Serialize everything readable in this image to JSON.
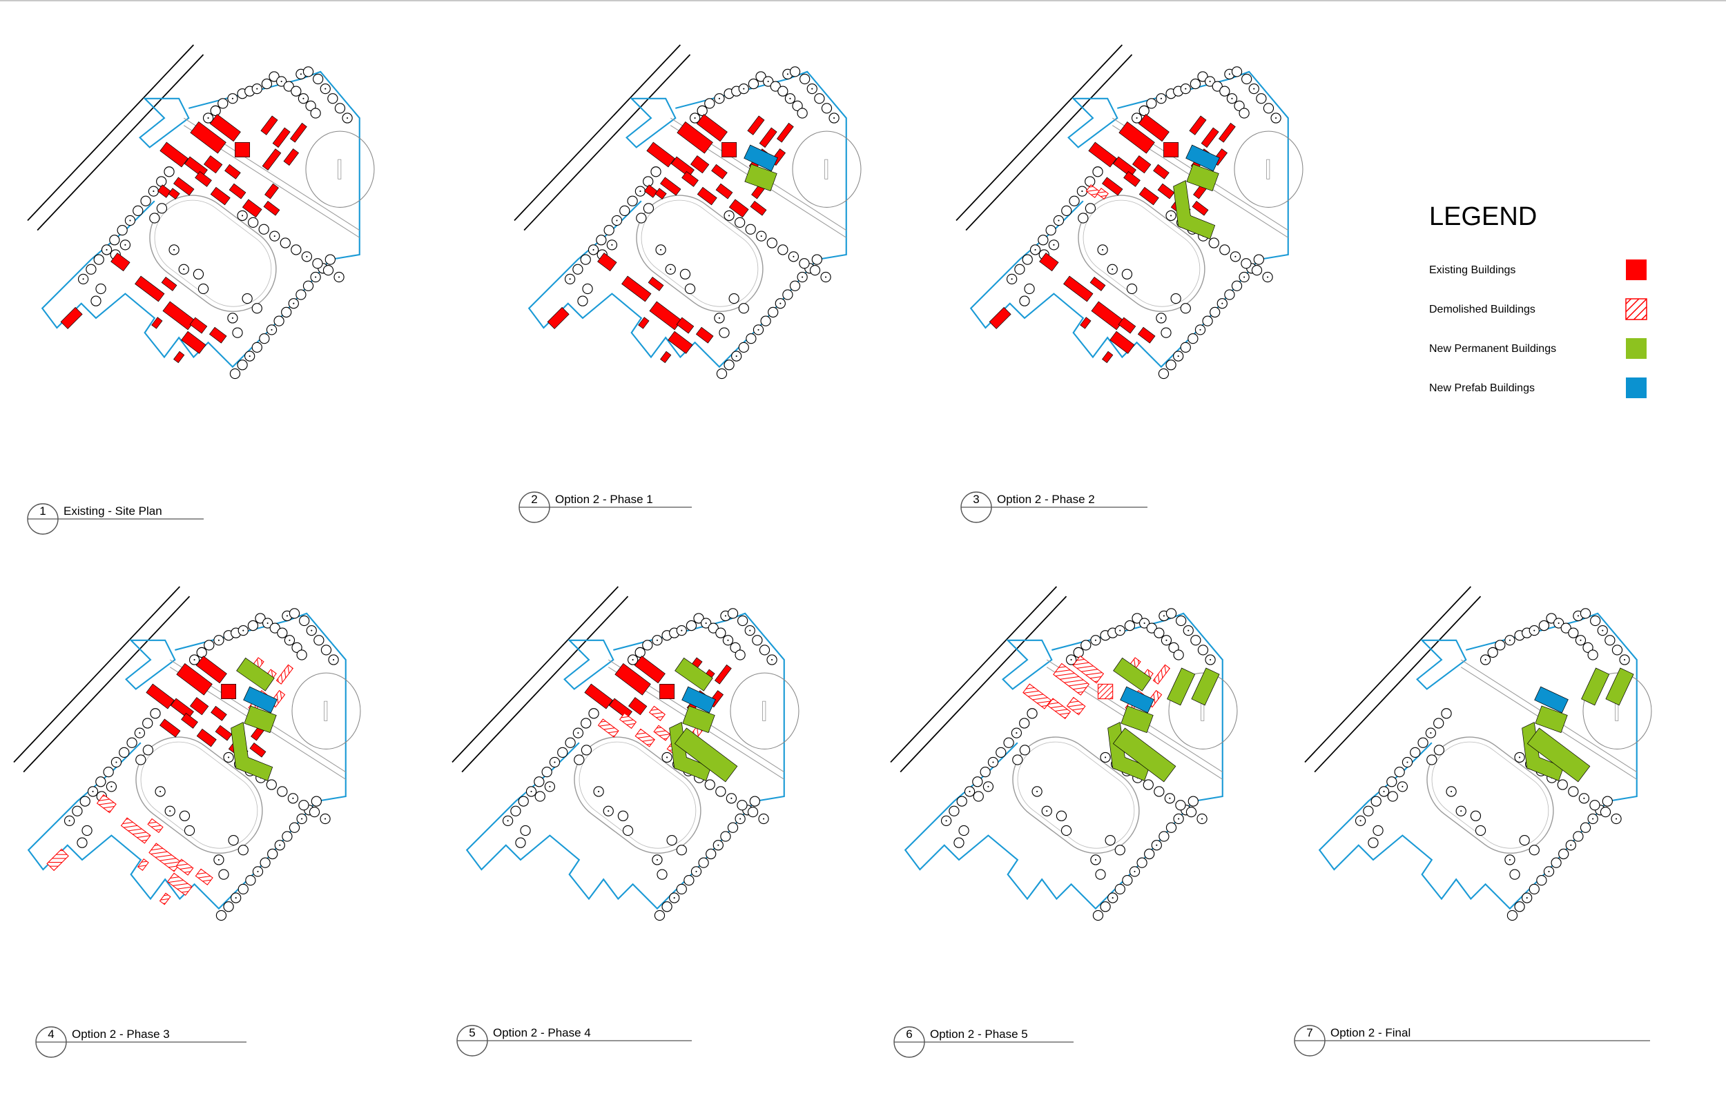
{
  "legend": {
    "title": "LEGEND",
    "items": [
      {
        "key": "existing",
        "label": "Existing Buildings",
        "swatch": "solid",
        "color": "#ff0000"
      },
      {
        "key": "demolished",
        "label": "Demolished Buildings",
        "swatch": "hatch",
        "color": "#ff0000"
      },
      {
        "key": "permanent",
        "label": "New Permanent Buildings",
        "swatch": "solid",
        "color": "#8dc21f"
      },
      {
        "key": "prefab",
        "label": "New Prefab Buildings",
        "swatch": "solid",
        "color": "#0b92d0"
      }
    ]
  },
  "colors": {
    "existing": "#ff0000",
    "permanent": "#8dc21f",
    "prefab": "#0b92d0",
    "boundary": "#1a9ad6",
    "lines": "#000000",
    "track": "#9a9a9a"
  },
  "panels": [
    {
      "number": "1",
      "title": "Existing - Site Plan"
    },
    {
      "number": "2",
      "title": "Option 2 - Phase 1"
    },
    {
      "number": "3",
      "title": "Option 2 - Phase 2"
    },
    {
      "number": "4",
      "title": "Option 2 - Phase 3"
    },
    {
      "number": "5",
      "title": "Option 2 - Phase 4"
    },
    {
      "number": "6",
      "title": "Option 2 - Phase 5"
    },
    {
      "number": "7",
      "title": "Option 2 - Final"
    }
  ]
}
